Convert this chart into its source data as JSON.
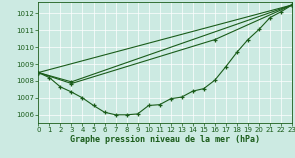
{
  "xlabel": "Graphe pression niveau de la mer (hPa)",
  "bg_color": "#cceae2",
  "grid_color": "#aad4cc",
  "line_color": "#1a5c1a",
  "xlim": [
    0,
    23
  ],
  "ylim": [
    1005.5,
    1012.7
  ],
  "yticks": [
    1006,
    1007,
    1008,
    1009,
    1010,
    1011,
    1012
  ],
  "xticks": [
    0,
    1,
    2,
    3,
    4,
    5,
    6,
    7,
    8,
    9,
    10,
    11,
    12,
    13,
    14,
    15,
    16,
    17,
    18,
    19,
    20,
    21,
    22,
    23
  ],
  "curve_x": [
    0,
    1,
    2,
    3,
    4,
    5,
    6,
    7,
    8,
    9,
    10,
    11,
    12,
    13,
    14,
    15,
    16,
    17,
    18,
    19,
    20,
    21,
    22,
    23
  ],
  "curve_y": [
    1008.5,
    1008.2,
    1007.65,
    1007.35,
    1007.0,
    1006.55,
    1006.15,
    1006.0,
    1006.0,
    1006.05,
    1006.55,
    1006.6,
    1006.95,
    1007.05,
    1007.4,
    1007.55,
    1008.05,
    1008.85,
    1009.7,
    1010.45,
    1011.05,
    1011.75,
    1012.1,
    1012.5
  ],
  "line1_x": [
    0,
    23
  ],
  "line1_y": [
    1008.5,
    1012.5
  ],
  "line2_x": [
    0,
    3,
    23
  ],
  "line2_y": [
    1008.5,
    1007.95,
    1012.5
  ],
  "line3_x": [
    0,
    3,
    16,
    23
  ],
  "line3_y": [
    1008.5,
    1007.85,
    1010.45,
    1012.5
  ]
}
